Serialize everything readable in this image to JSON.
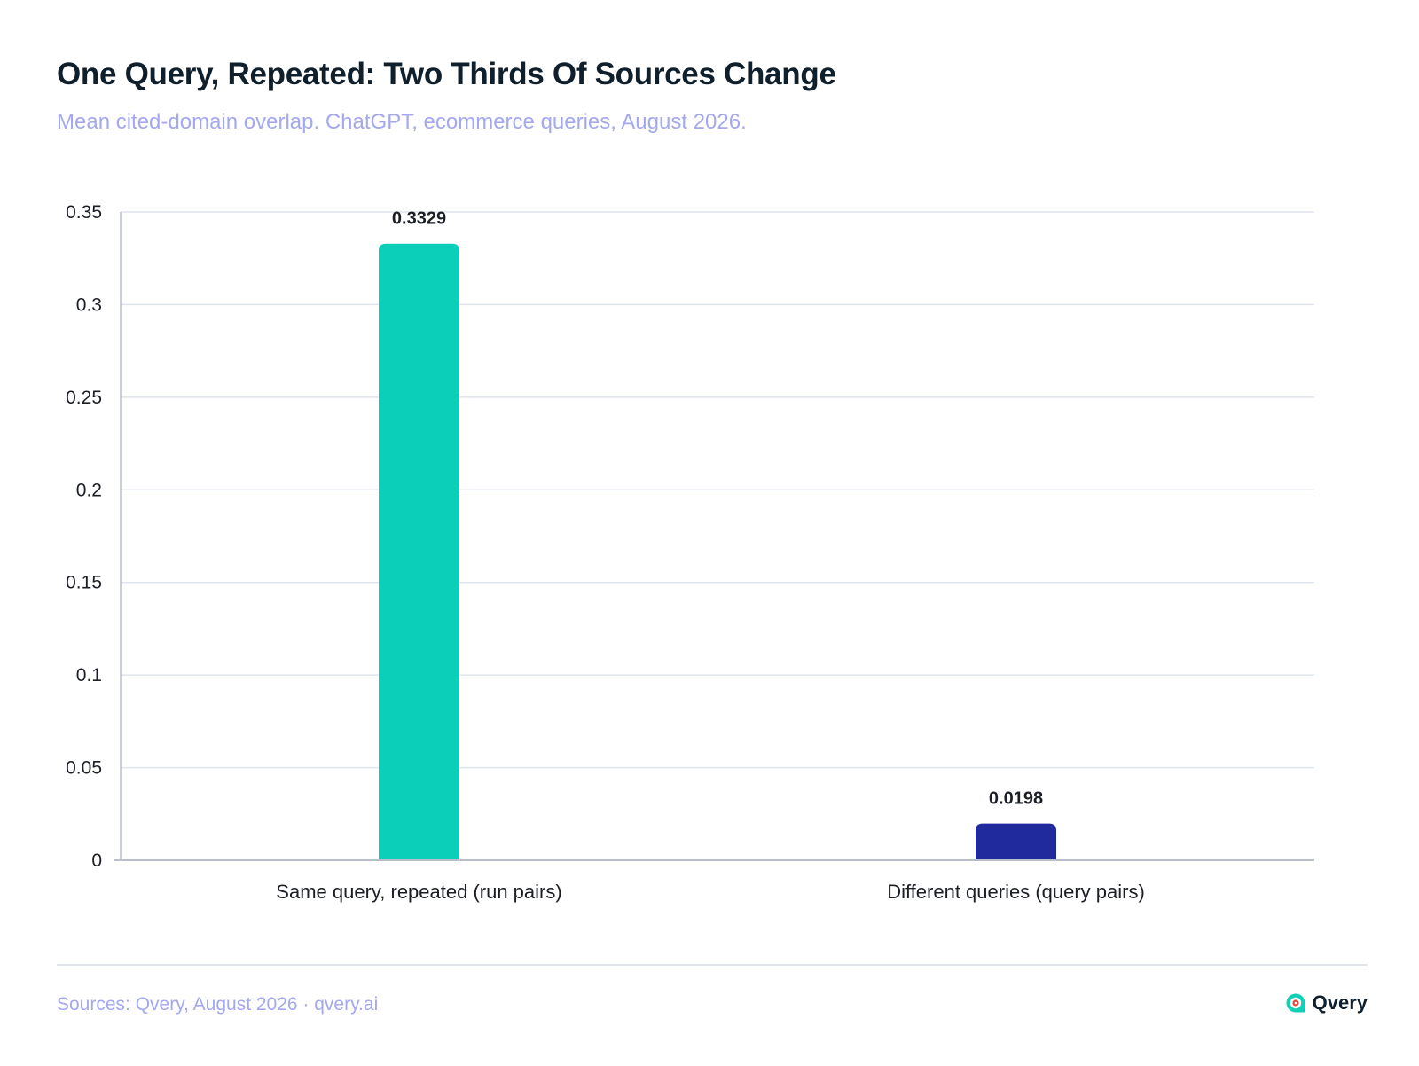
{
  "colors": {
    "title": "#0f1f2b",
    "subtitle": "#a3a8ef",
    "grid": "#dfe4ec",
    "axis": "#b8bfc9",
    "bar_same_query": "#0ccfb9",
    "bar_different_queries": "#212a9d",
    "logo_teal": "#14cfb8",
    "logo_red": "#e8453c"
  },
  "header": {
    "title": "One Query, Repeated: Two Thirds Of Sources Change",
    "subtitle": "Mean cited-domain overlap. ChatGPT, ecommerce queries, August 2026."
  },
  "footer": {
    "source": "Sources: Qvery, August 2026 · qvery.ai",
    "brand": "Qvery",
    "brand_icon": "qvery-logo-icon"
  },
  "chart_data": {
    "type": "bar",
    "title": "One Query, Repeated: Two Thirds Of Sources Change",
    "subtitle": "Mean cited-domain overlap. ChatGPT, ecommerce queries, August 2026.",
    "categories": [
      "Same query, repeated (run pairs)",
      "Different queries (query pairs)"
    ],
    "values": [
      0.3329,
      0.0198
    ],
    "data_labels": [
      "0.3329",
      "0.0198"
    ],
    "bar_colors": [
      "#0ccfb9",
      "#212a9d"
    ],
    "xlabel": "",
    "ylabel": "",
    "ylim": [
      0,
      0.35
    ],
    "yticks": [
      0,
      0.05,
      0.1,
      0.15,
      0.2,
      0.25,
      0.3,
      0.35
    ],
    "ytick_labels": [
      "0",
      "0.05",
      "0.1",
      "0.15",
      "0.2",
      "0.25",
      "0.3",
      "0.35"
    ],
    "grid": true,
    "legend": "none"
  }
}
